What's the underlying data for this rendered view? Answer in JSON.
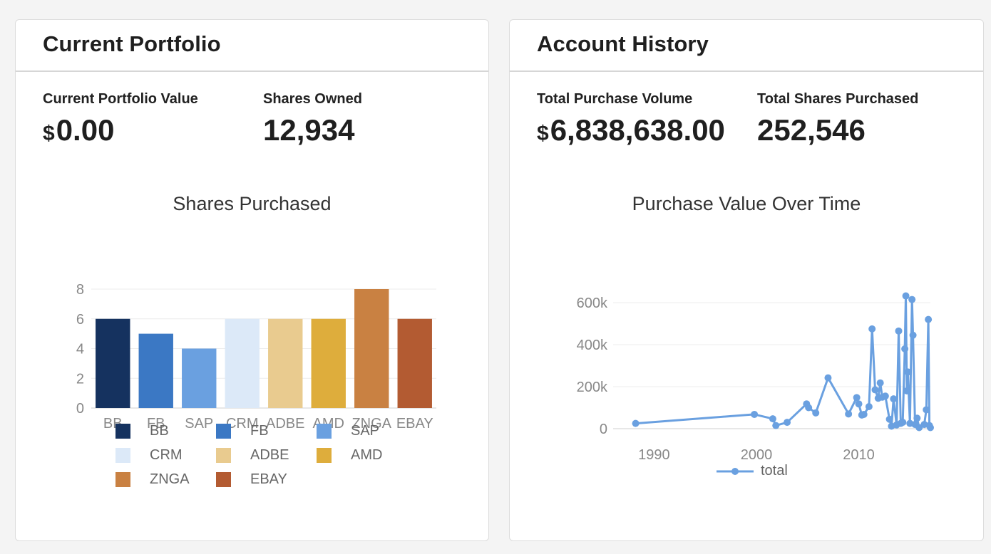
{
  "portfolio": {
    "title": "Current Portfolio",
    "value_label": "Current Portfolio Value",
    "value_currency": "$",
    "value_amount": "0.00",
    "shares_label": "Shares Owned",
    "shares_value": "12,934"
  },
  "history": {
    "title": "Account History",
    "volume_label": "Total Purchase Volume",
    "volume_currency": "$",
    "volume_amount": "6,838,638.00",
    "shares_label": "Total Shares Purchased",
    "shares_value": "252,546"
  },
  "chart_data": [
    {
      "type": "bar",
      "title": "Shares Purchased",
      "categories": [
        "BB",
        "FB",
        "SAP",
        "CRM",
        "ADBE",
        "AMD",
        "ZNGA",
        "EBAY"
      ],
      "values": [
        6,
        5,
        4,
        6,
        6,
        6,
        8,
        6
      ],
      "colors": [
        "#15325f",
        "#3b78c4",
        "#6aa0e0",
        "#dce9f8",
        "#e9cb8f",
        "#dead3c",
        "#c98142",
        "#b35b32"
      ],
      "ylim": [
        0,
        8
      ],
      "yticks": [
        "0",
        "2",
        "4",
        "6",
        "8"
      ],
      "grid": true,
      "legend": "bottom"
    },
    {
      "type": "line",
      "title": "Purchase Value Over Time",
      "xlim": [
        1986,
        2017
      ],
      "ylim": [
        0,
        600000
      ],
      "xticks": [
        1990,
        2000,
        2010
      ],
      "xtick_labels": [
        "1990",
        "2000",
        "2010"
      ],
      "yticks": [
        0,
        200000,
        400000,
        600000
      ],
      "ytick_labels": [
        "0",
        "200k",
        "400k",
        "600k"
      ],
      "grid": true,
      "legend": "bottom",
      "series": [
        {
          "name": "total",
          "color": "#6aa0e0",
          "points": [
            [
              1988.2,
              25000
            ],
            [
              1999.8,
              68000
            ],
            [
              2001.6,
              47000
            ],
            [
              2001.9,
              15000
            ],
            [
              2003.0,
              30000
            ],
            [
              2004.9,
              118000
            ],
            [
              2005.1,
              100000
            ],
            [
              2005.8,
              75000
            ],
            [
              2007.0,
              242000
            ],
            [
              2009.0,
              70000
            ],
            [
              2009.8,
              148000
            ],
            [
              2010.0,
              118000
            ],
            [
              2010.3,
              65000
            ],
            [
              2010.5,
              68000
            ],
            [
              2011.0,
              105000
            ],
            [
              2011.3,
              475000
            ],
            [
              2011.6,
              185000
            ],
            [
              2011.9,
              145000
            ],
            [
              2012.1,
              218000
            ],
            [
              2012.3,
              150000
            ],
            [
              2012.6,
              155000
            ],
            [
              2013.0,
              45000
            ],
            [
              2013.2,
              12000
            ],
            [
              2013.4,
              142000
            ],
            [
              2013.7,
              18000
            ],
            [
              2013.9,
              465000
            ],
            [
              2014.1,
              25000
            ],
            [
              2014.3,
              30000
            ],
            [
              2014.5,
              380000
            ],
            [
              2014.6,
              632000
            ],
            [
              2014.7,
              180000
            ],
            [
              2014.8,
              270000
            ],
            [
              2015.0,
              25000
            ],
            [
              2015.2,
              615000
            ],
            [
              2015.3,
              445000
            ],
            [
              2015.5,
              20000
            ],
            [
              2015.7,
              50000
            ],
            [
              2015.9,
              5000
            ],
            [
              2016.4,
              20000
            ],
            [
              2016.6,
              90000
            ],
            [
              2016.8,
              520000
            ],
            [
              2016.9,
              15000
            ],
            [
              2017.0,
              5000
            ]
          ]
        }
      ]
    }
  ]
}
